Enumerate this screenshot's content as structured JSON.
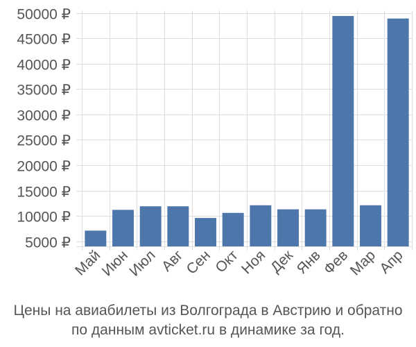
{
  "chart_data": {
    "type": "bar",
    "categories": [
      "Май",
      "Июн",
      "Июл",
      "Авг",
      "Сен",
      "Окт",
      "Ноя",
      "Дек",
      "Янв",
      "Фев",
      "Мар",
      "Апр"
    ],
    "values": [
      7100,
      11200,
      11900,
      11900,
      9600,
      10600,
      12100,
      11300,
      11300,
      49400,
      12100,
      48900
    ],
    "ylim": [
      4000,
      50500
    ],
    "yticks": [
      5000,
      10000,
      15000,
      20000,
      25000,
      30000,
      35000,
      40000,
      45000,
      50000
    ],
    "y_tick_suffix": " ₽",
    "bar_color": "#4d77aa",
    "grid": true,
    "title": "",
    "xlabel": "",
    "ylabel": ""
  },
  "caption": {
    "line1": "Цены на авиабилеты из Волгограда в Австрию и обратно",
    "line2": "по данным avticket.ru в динамике за год."
  }
}
